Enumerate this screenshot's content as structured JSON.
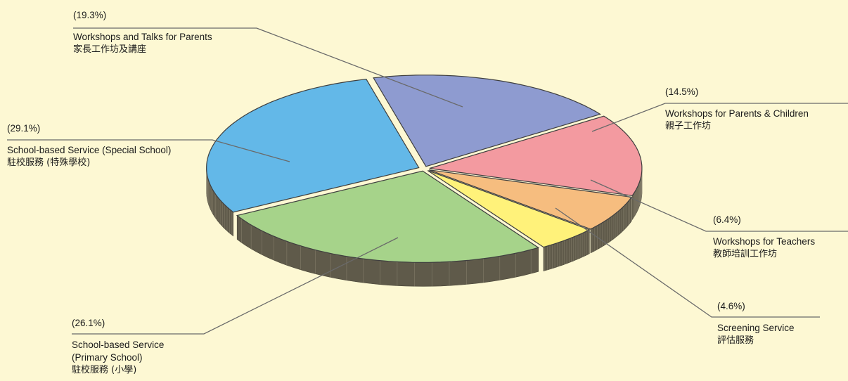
{
  "chart_data": {
    "type": "pie",
    "title": "",
    "slices": [
      {
        "key": "parents_talks",
        "percent": 19.3,
        "label_pct": "(19.3%)",
        "label_en": "Workshops and Talks for Parents",
        "label_zh": "家長工作坊及講座",
        "color": "#8e9bd0"
      },
      {
        "key": "parents_children",
        "percent": 14.5,
        "label_pct": "(14.5%)",
        "label_en": "Workshops for Parents & Children",
        "label_zh": "親子工作坊",
        "color": "#f39aa0"
      },
      {
        "key": "teachers",
        "percent": 6.4,
        "label_pct": "(6.4%)",
        "label_en": "Workshops for Teachers",
        "label_zh": "教師培訓工作坊",
        "color": "#f6bd7f"
      },
      {
        "key": "screening",
        "percent": 4.6,
        "label_pct": "(4.6%)",
        "label_en": "Screening Service",
        "label_zh": "評估服務",
        "color": "#fff27a"
      },
      {
        "key": "primary",
        "percent": 26.1,
        "label_pct": "(26.1%)",
        "label_en": "School-based Service\n(Primary School)",
        "label_zh": "駐校服務 (小學)",
        "color": "#a6d38a"
      },
      {
        "key": "special",
        "percent": 29.1,
        "label_pct": "(29.1%)",
        "label_en": "School-based Service (Special School)",
        "label_zh": "駐校服務 (特殊學校)",
        "color": "#63b8e8"
      }
    ],
    "legend": "callout-labels",
    "background": "#fdf8d3"
  }
}
